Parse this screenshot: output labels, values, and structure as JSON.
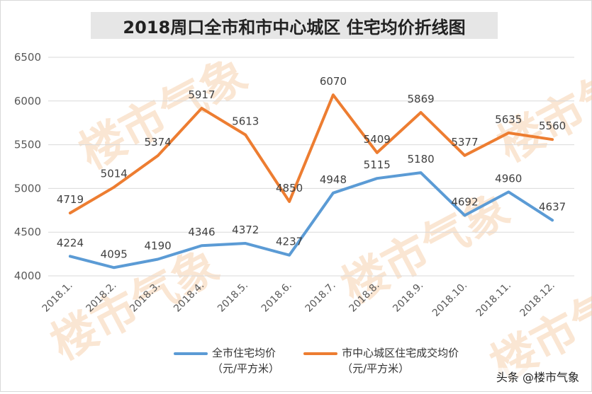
{
  "title": "2018周口全市和市中心城区 住宅均价折线图",
  "credit": "头条 @楼市气象",
  "watermark": "楼市气象",
  "colors": {
    "series1": "#5b9bd5",
    "series2": "#ed7d31",
    "grid": "#d9d9d9"
  },
  "chart_data": {
    "type": "line",
    "title": "2018周口全市和市中心城区 住宅均价折线图",
    "categories": [
      "2018.1.",
      "2018.2.",
      "2018.3.",
      "2018.4.",
      "2018.5.",
      "2018.6.",
      "2018.7.",
      "2018.8.",
      "2018.9.",
      "2018.10.",
      "2018.11.",
      "2018.12."
    ],
    "yticks": [
      4000,
      4500,
      5000,
      5500,
      6000,
      6500
    ],
    "ylim": [
      4000,
      6500
    ],
    "grid": true,
    "legend_position": "bottom",
    "series": [
      {
        "name": "全市住宅均价",
        "name_line2": "（元/平方米）",
        "color": "#5b9bd5",
        "values": [
          4224,
          4095,
          4190,
          4346,
          4372,
          4237,
          4948,
          5115,
          5180,
          4692,
          4960,
          4637
        ]
      },
      {
        "name": "市中心城区住宅成交均价",
        "name_line2": "（元/平方米）",
        "color": "#ed7d31",
        "values": [
          4719,
          5014,
          5374,
          5917,
          5613,
          4850,
          6070,
          5409,
          5869,
          5377,
          5635,
          5560
        ]
      }
    ]
  }
}
